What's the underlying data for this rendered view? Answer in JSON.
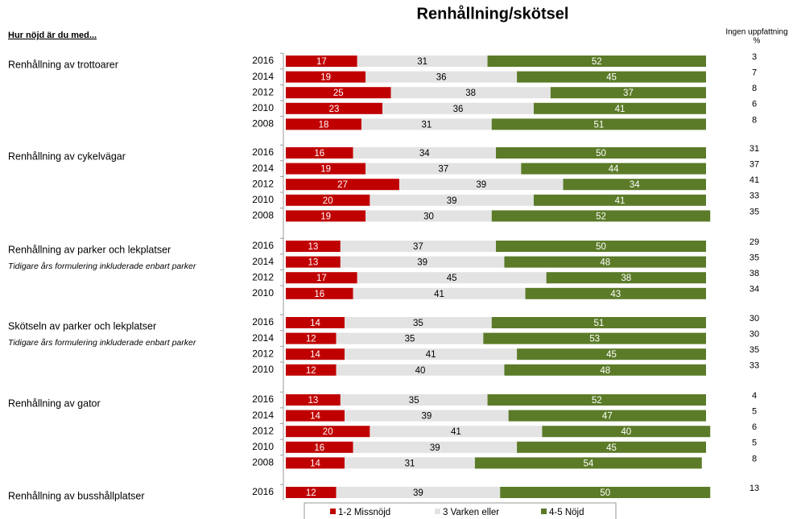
{
  "chart_data": {
    "type": "bar",
    "title": "Renhållning/skötsel",
    "header": "Hur nöjd är du med...",
    "no_opinion_title": "Ingen uppfattning",
    "no_opinion_unit": "%",
    "xlim": [
      0,
      100
    ],
    "series": [
      {
        "name": "1-2 Missnöjd",
        "color": "#c00000"
      },
      {
        "name": "3 Varken eller",
        "color": "#e3e3e3"
      },
      {
        "name": "4-5 Nöjd",
        "color": "#5b7b28"
      }
    ],
    "groups": [
      {
        "label": "Renhållning av trottoarer",
        "categories": [
          "2016",
          "2014",
          "2012",
          "2010",
          "2008"
        ],
        "values": [
          [
            17,
            19,
            25,
            23,
            18
          ],
          [
            31,
            36,
            38,
            36,
            31
          ],
          [
            52,
            45,
            37,
            41,
            51
          ]
        ],
        "no_opinion": [
          3,
          7,
          8,
          6,
          8
        ]
      },
      {
        "label": "Renhållning av cykelvägar",
        "categories": [
          "2016",
          "2014",
          "2012",
          "2010",
          "2008"
        ],
        "values": [
          [
            16,
            19,
            27,
            20,
            19
          ],
          [
            34,
            37,
            39,
            39,
            30
          ],
          [
            50,
            44,
            34,
            41,
            52
          ]
        ],
        "no_opinion": [
          31,
          37,
          41,
          33,
          35
        ]
      },
      {
        "label": "Renhållning av parker och lekplatser",
        "note": "Tidigare års formulering inkluderade enbart parker",
        "categories": [
          "2016",
          "2014",
          "2012",
          "2010"
        ],
        "values": [
          [
            13,
            13,
            17,
            16
          ],
          [
            37,
            39,
            45,
            41
          ],
          [
            50,
            48,
            38,
            43
          ]
        ],
        "no_opinion": [
          29,
          35,
          38,
          34
        ]
      },
      {
        "label": "Skötseln av parker och lekplatser",
        "note": "Tidigare års formulering inkluderade enbart parker",
        "categories": [
          "2016",
          "2014",
          "2012",
          "2010"
        ],
        "values": [
          [
            14,
            12,
            14,
            12
          ],
          [
            35,
            35,
            41,
            40
          ],
          [
            51,
            53,
            45,
            48
          ]
        ],
        "no_opinion": [
          30,
          30,
          35,
          33
        ]
      },
      {
        "label": "Renhållning av gator",
        "categories": [
          "2016",
          "2014",
          "2012",
          "2010",
          "2008"
        ],
        "values": [
          [
            13,
            14,
            20,
            16,
            14
          ],
          [
            35,
            39,
            41,
            39,
            31
          ],
          [
            52,
            47,
            40,
            45,
            54
          ]
        ],
        "no_opinion": [
          4,
          5,
          6,
          5,
          8
        ]
      },
      {
        "label": "Renhållning av busshållplatser",
        "categories": [
          "2016"
        ],
        "values": [
          [
            12
          ],
          [
            39
          ],
          [
            50
          ]
        ],
        "no_opinion": [
          13
        ]
      }
    ]
  }
}
